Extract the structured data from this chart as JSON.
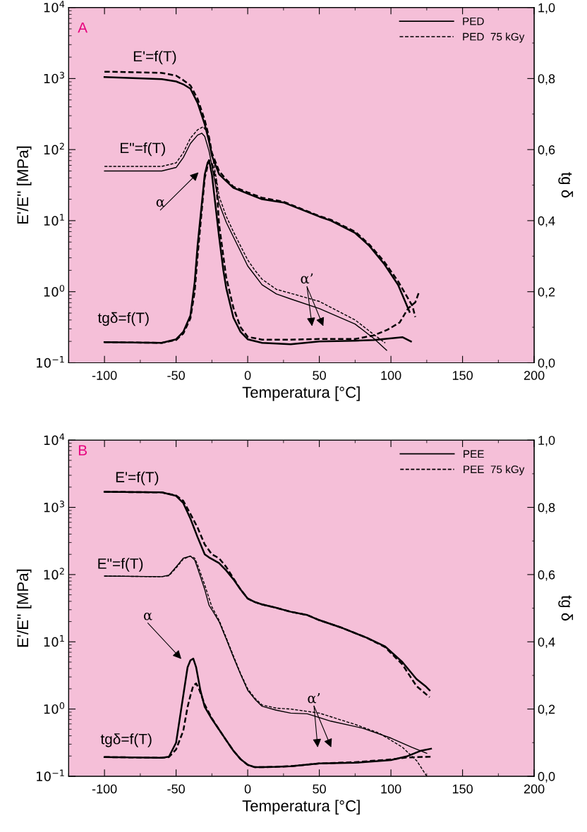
{
  "chart_data": [
    {
      "type": "line",
      "xlabel": "Temperatura [°C]",
      "ylabel": "E'/E'' [MPa]",
      "y2label": "tg δ",
      "log": "y",
      "xlim": [
        -125,
        200
      ],
      "xticks": [
        -100,
        -50,
        0,
        50,
        100,
        150,
        200
      ],
      "ylim": [
        0.1,
        10000
      ],
      "yticks": [
        {
          "value": 0.1,
          "label": "10$^{−1}$"
        },
        {
          "value": 1,
          "label": "10$^{0}$"
        },
        {
          "value": 10,
          "label": "10$^{1}$"
        },
        {
          "value": 100,
          "label": "10$^{2}$"
        },
        {
          "value": 1000,
          "label": "10$^{3}$"
        },
        {
          "value": 10000,
          "label": "10$^{4}$"
        }
      ],
      "y2lim": [
        0,
        1
      ],
      "y2ticks": [
        {
          "value": 0,
          "label": "0,0"
        },
        {
          "value": 0.2,
          "label": "0,2"
        },
        {
          "value": 0.4,
          "label": "0,4"
        },
        {
          "value": 0.6,
          "label": "0,6"
        },
        {
          "value": 0.8,
          "label": "0,8"
        },
        {
          "value": 1,
          "label": "1,0"
        }
      ],
      "legend": "top right",
      "grid": false,
      "series": [
        {
          "name": "PED",
          "color": "#000000",
          "line_style": "solid",
          "x": [
            -100,
            -60,
            -50,
            -45,
            -40,
            -35,
            -30,
            -27,
            -25,
            -20,
            -15,
            -10,
            0,
            10,
            25,
            50,
            58,
            75,
            85,
            95,
            105,
            113
          ],
          "values": [
            1050,
            980,
            910,
            830,
            720,
            455,
            227,
            130,
            82,
            45,
            36,
            29,
            24,
            20,
            18,
            11.4,
            10,
            6.7,
            4.4,
            2.5,
            1.25,
            0.52
          ]
        },
        {
          "name": "PED  75 kGy",
          "color": "#000000",
          "line_style": "dashed",
          "x": [
            -100,
            -60,
            -50,
            -45,
            -40,
            -35,
            -30,
            -27,
            -25,
            -20,
            -15,
            -10,
            0,
            10,
            25,
            50,
            58,
            75,
            85,
            95,
            105,
            115,
            117
          ],
          "values": [
            1250,
            1200,
            1100,
            950,
            800,
            520,
            260,
            150,
            90,
            50,
            38,
            30,
            25,
            21,
            18.5,
            11.6,
            10.3,
            7,
            4.6,
            2.7,
            1.4,
            0.63,
            0.44
          ]
        },
        {
          "color": "#000000",
          "line_style": "solid",
          "x": [
            -100,
            -60,
            -50,
            -45,
            -40,
            -35,
            -32,
            -30,
            -27,
            -25,
            -22,
            -20,
            -15,
            -10,
            -5,
            0,
            5,
            10,
            20,
            30,
            50,
            75,
            88,
            97
          ],
          "values": [
            50,
            50,
            56,
            77,
            122,
            160,
            170,
            153,
            95,
            60,
            28,
            17.5,
            9.5,
            5.9,
            3.7,
            2.3,
            1.7,
            1.25,
            0.93,
            0.79,
            0.58,
            0.35,
            0.22,
            0.15
          ]
        },
        {
          "color": "#000000",
          "line_style": "dashed",
          "x": [
            -100,
            -60,
            -50,
            -45,
            -40,
            -35,
            -31,
            -28,
            -25,
            -22,
            -20,
            -15,
            -10,
            -5,
            0,
            5,
            10,
            20,
            30,
            50,
            75,
            88,
            96
          ],
          "values": [
            58,
            58,
            65,
            90,
            145,
            190,
            210,
            170,
            90,
            40,
            22,
            11.5,
            7,
            4.4,
            2.8,
            2,
            1.5,
            1.08,
            0.95,
            0.73,
            0.4,
            0.25,
            0.19
          ]
        },
        {
          "color": "#000000",
          "line_style": "solid",
          "axis": "y2",
          "x": [
            -100,
            -60,
            -50,
            -45,
            -40,
            -37,
            -35,
            -32,
            -30,
            -28,
            -27,
            -25,
            -23,
            -20,
            -17,
            -15,
            -10,
            -5,
            0,
            10,
            30,
            50,
            75,
            88,
            108,
            114
          ],
          "values": [
            0.058,
            0.056,
            0.066,
            0.087,
            0.133,
            0.228,
            0.33,
            0.45,
            0.53,
            0.563,
            0.57,
            0.53,
            0.46,
            0.355,
            0.26,
            0.21,
            0.127,
            0.087,
            0.066,
            0.056,
            0.052,
            0.06,
            0.062,
            0.064,
            0.072,
            0.06
          ]
        },
        {
          "color": "#000000",
          "line_style": "dashed",
          "axis": "y2",
          "x": [
            -100,
            -60,
            -50,
            -45,
            -40,
            -37,
            -35,
            -30,
            -27,
            -25,
            -22,
            -20,
            -15,
            -10,
            -5,
            0,
            10,
            30,
            50,
            75,
            88,
            97.6,
            106,
            112,
            117,
            119.5
          ],
          "values": [
            0.058,
            0.056,
            0.064,
            0.082,
            0.125,
            0.2,
            0.3,
            0.52,
            0.57,
            0.56,
            0.51,
            0.39,
            0.24,
            0.155,
            0.1,
            0.073,
            0.065,
            0.065,
            0.067,
            0.067,
            0.077,
            0.093,
            0.113,
            0.153,
            0.17,
            0.198
          ]
        }
      ],
      "annotations": [
        "A",
        "E'=f(T)",
        "E\"=f(T)",
        "tgδ=f(T)",
        "α",
        "α’"
      ]
    },
    {
      "type": "line",
      "xlabel": "Temperatura [°C]",
      "ylabel": "E'/E'' [MPa]",
      "y2label": "tg δ",
      "log": "y",
      "xlim": [
        -125,
        200
      ],
      "xticks": [
        -100,
        -50,
        0,
        50,
        100,
        150,
        200
      ],
      "ylim": [
        0.1,
        10000
      ],
      "yticks": [
        {
          "value": 0.1,
          "label": "10$^{−1}$"
        },
        {
          "value": 1,
          "label": "10$^{0}$"
        },
        {
          "value": 10,
          "label": "10$^{1}$"
        },
        {
          "value": 100,
          "label": "10$^{2}$"
        },
        {
          "value": 1000,
          "label": "10$^{3}$"
        },
        {
          "value": 10000,
          "label": "10$^{4}$"
        }
      ],
      "y2lim": [
        0,
        1
      ],
      "y2ticks": [
        {
          "value": 0,
          "label": "0,0"
        },
        {
          "value": 0.2,
          "label": "0,2"
        },
        {
          "value": 0.4,
          "label": "0,4"
        },
        {
          "value": 0.6,
          "label": "0,6"
        },
        {
          "value": 0.8,
          "label": "0,8"
        },
        {
          "value": 1,
          "label": "1,0"
        }
      ],
      "legend": "top right",
      "grid": false,
      "series": [
        {
          "name": "PEE",
          "color": "#000000",
          "line_style": "solid",
          "x": [
            -100,
            -60,
            -50,
            -45,
            -40,
            -35,
            -30,
            -27,
            -25,
            -20,
            -15,
            -10,
            -5,
            0,
            5,
            10,
            20,
            30,
            41.6,
            50,
            66.3,
            83,
            96,
            108,
            117.8,
            124,
            127
          ],
          "values": [
            1700,
            1670,
            1480,
            1160,
            680,
            360,
            200,
            180,
            170,
            148,
            115,
            85,
            60,
            44,
            39,
            36,
            32,
            28,
            25,
            21,
            16,
            11.5,
            8.5,
            5,
            2.8,
            2.2,
            1.9
          ]
        },
        {
          "name": "PEE  75 kGy",
          "color": "#000000",
          "line_style": "dashed",
          "x": [
            -100,
            -60,
            -50,
            -45,
            -40,
            -35,
            -30,
            -25,
            -20,
            -15,
            -10,
            -5,
            0,
            5,
            10,
            20,
            30,
            41.6,
            50,
            66.3,
            83,
            96,
            108,
            117.8,
            127
          ],
          "values": [
            1700,
            1670,
            1500,
            1250,
            800,
            500,
            280,
            200,
            175,
            130,
            88,
            60,
            44,
            39,
            36,
            32,
            28,
            25,
            21,
            16,
            11.5,
            8.3,
            4.6,
            2.2,
            1.5
          ]
        },
        {
          "color": "#000000",
          "line_style": "solid",
          "x": [
            -100,
            -60,
            -55,
            -50,
            -45,
            -40,
            -37,
            -35,
            -30,
            -27,
            -25,
            -20,
            -15,
            -10,
            -5,
            0,
            5,
            10,
            20,
            30,
            41.6,
            58,
            80,
            100,
            114.6,
            125
          ],
          "values": [
            95,
            93,
            98,
            130,
            175,
            188,
            165,
            125,
            60,
            35,
            30,
            20,
            11,
            5.9,
            3.3,
            1.9,
            1.4,
            1.1,
            0.96,
            0.87,
            0.85,
            0.66,
            0.52,
            0.37,
            0.27,
            0.22
          ]
        },
        {
          "color": "#000000",
          "line_style": "dashed",
          "x": [
            -100,
            -60,
            -55,
            -50,
            -45,
            -40,
            -37,
            -35,
            -30,
            -25,
            -20,
            -15,
            -10,
            -5,
            0,
            5,
            10,
            20,
            30,
            50,
            75,
            91.6,
            108,
            118,
            125
          ],
          "values": [
            95,
            93,
            96,
            125,
            170,
            188,
            175,
            140,
            70,
            33,
            21,
            11.5,
            6.2,
            3.4,
            2,
            1.45,
            1.15,
            1.03,
            1,
            0.87,
            0.59,
            0.44,
            0.27,
            0.17,
            0.1
          ]
        },
        {
          "color": "#000000",
          "line_style": "solid",
          "axis": "y2",
          "x": [
            -100,
            -60,
            -55,
            -50,
            -45,
            -42,
            -40,
            -38,
            -36,
            -33,
            -30,
            -25,
            -20,
            -15,
            -10,
            -5,
            0,
            5,
            10,
            20,
            30,
            50,
            75,
            100,
            111,
            121,
            128
          ],
          "values": [
            0.057,
            0.055,
            0.058,
            0.1,
            0.24,
            0.324,
            0.345,
            0.35,
            0.324,
            0.255,
            0.206,
            0.17,
            0.139,
            0.107,
            0.076,
            0.051,
            0.034,
            0.027,
            0.027,
            0.028,
            0.03,
            0.038,
            0.04,
            0.048,
            0.059,
            0.076,
            0.082
          ]
        },
        {
          "color": "#000000",
          "line_style": "dashed",
          "axis": "y2",
          "x": [
            -100,
            -60,
            -55,
            -50,
            -45,
            -42,
            -40,
            -38,
            -36,
            -34,
            -30,
            -25,
            -20,
            -15,
            -10,
            -5,
            0,
            5,
            10,
            20,
            30,
            50,
            75,
            100,
            111,
            128
          ],
          "values": [
            0.057,
            0.055,
            0.057,
            0.08,
            0.135,
            0.206,
            0.24,
            0.27,
            0.276,
            0.26,
            0.213,
            0.172,
            0.139,
            0.107,
            0.076,
            0.051,
            0.034,
            0.027,
            0.027,
            0.028,
            0.03,
            0.038,
            0.042,
            0.05,
            0.056,
            0.058
          ]
        }
      ],
      "annotations": [
        "B",
        "E'=f(T)",
        "E\"=f(T)",
        "tgδ=f(T)",
        "α",
        "α’"
      ]
    }
  ]
}
